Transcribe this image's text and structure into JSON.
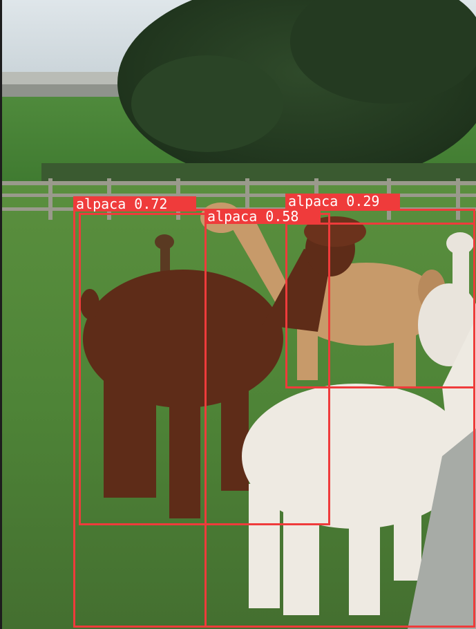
{
  "detections": [
    {
      "class": "alpaca",
      "confidence": "0.72",
      "label_text": "alpaca 0.72"
    },
    {
      "class": "alpaca",
      "confidence": "0.58",
      "label_text": "alpaca 0.58"
    },
    {
      "class": "alpaca",
      "confidence": "0.29",
      "label_text": "alpaca 0.29"
    }
  ],
  "colors": {
    "box": "#ef3b3b",
    "label_text": "#ffffff"
  }
}
